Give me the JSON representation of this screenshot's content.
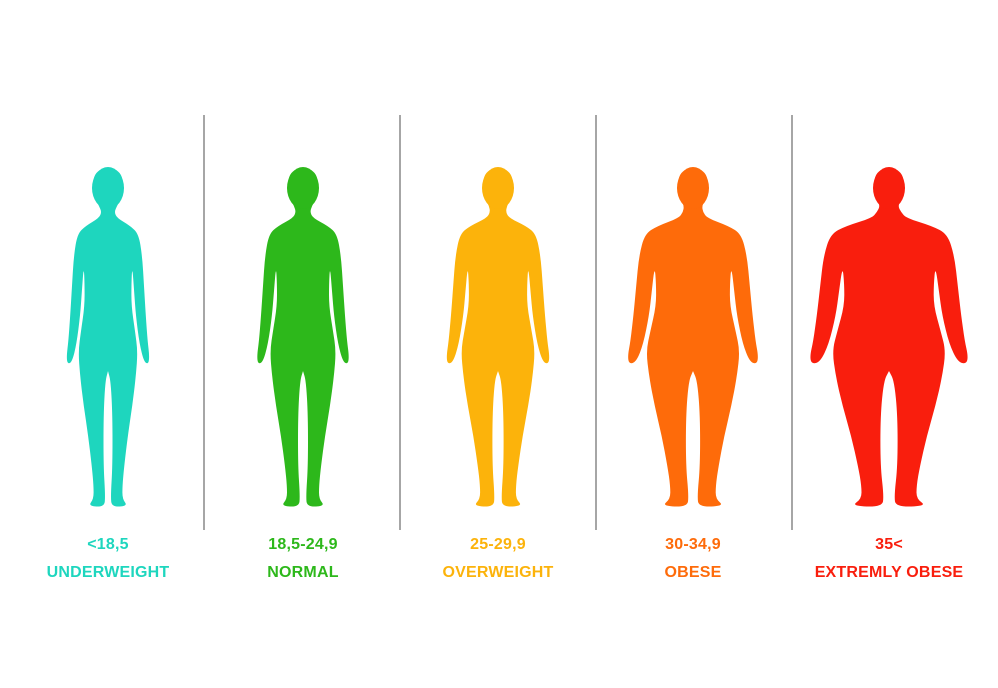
{
  "categories": [
    {
      "range": "<18,5",
      "label": "UNDERWEIGHT",
      "color": "#1ed6be",
      "icon": "underweight-silhouette-icon"
    },
    {
      "range": "18,5-24,9",
      "label": "NORMAL",
      "color": "#2db81b",
      "icon": "normal-silhouette-icon"
    },
    {
      "range": "25-29,9",
      "label": "OVERWEIGHT",
      "color": "#fcb30b",
      "icon": "overweight-silhouette-icon"
    },
    {
      "range": "30-34,9",
      "label": "OBESE",
      "color": "#fe6b0a",
      "icon": "obese-silhouette-icon"
    },
    {
      "range": "35<",
      "label": "EXTREMLY OBESE",
      "color": "#f91e0d",
      "icon": "extremely-obese-silhouette-icon"
    }
  ],
  "divider_color": "#a6a6a6"
}
